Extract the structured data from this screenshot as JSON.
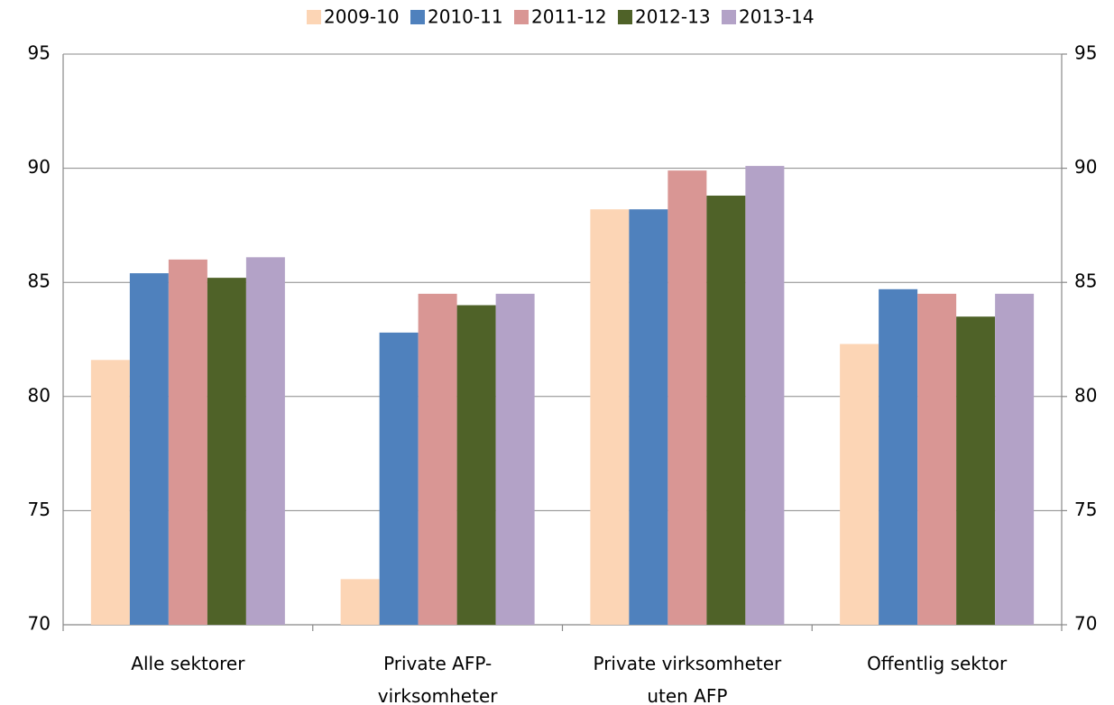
{
  "chart_data": {
    "type": "bar",
    "categories": [
      "Alle sektorer",
      "Private AFP-\nvirksomheter",
      "Private virksomheter\nuten AFP",
      "Offentlig sektor"
    ],
    "series": [
      {
        "name": "2009-10",
        "color": "#fcd5b5",
        "values": [
          81.6,
          72.0,
          88.2,
          82.3
        ]
      },
      {
        "name": "2010-11",
        "color": "#4f81bd",
        "values": [
          85.4,
          82.8,
          88.2,
          84.7
        ]
      },
      {
        "name": "2011-12",
        "color": "#d99694",
        "values": [
          86.0,
          84.5,
          89.9,
          84.5
        ]
      },
      {
        "name": "2012-13",
        "color": "#4f6228",
        "values": [
          85.2,
          84.0,
          88.8,
          83.5
        ]
      },
      {
        "name": "2013-14",
        "color": "#b3a2c7",
        "values": [
          86.1,
          84.5,
          90.1,
          84.5
        ]
      }
    ],
    "ylim": [
      70,
      95
    ],
    "yticks": [
      70,
      75,
      80,
      85,
      90,
      95
    ],
    "y2lim": [
      70,
      95
    ],
    "y2ticks": [
      70,
      75,
      80,
      85,
      90,
      95
    ],
    "grid": true,
    "legend": "top"
  }
}
